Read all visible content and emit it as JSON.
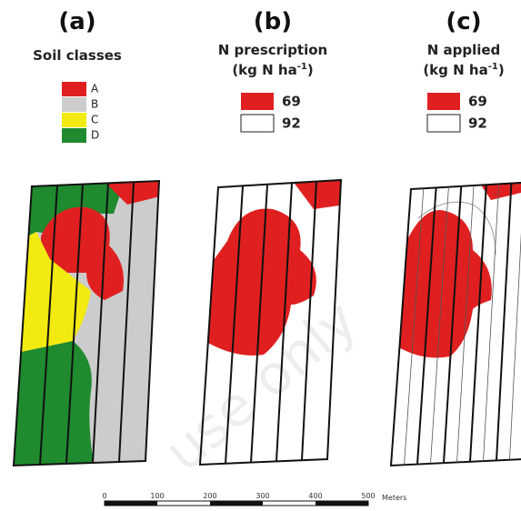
{
  "panels": [
    {
      "label": "(a)",
      "title": "Soil classes",
      "legend": [
        "A",
        "B",
        "C",
        "D"
      ]
    },
    {
      "label": "(b)",
      "title": "N prescription",
      "unit": {
        "prefix": "(kg N ha",
        "exponent": "-1",
        "suffix": ")"
      },
      "legend": [
        "69",
        "92"
      ]
    },
    {
      "label": "(c)",
      "title": "N applied",
      "unit": {
        "prefix": "(kg N ha",
        "exponent": "-1",
        "suffix": ")"
      },
      "legend": [
        "69",
        "92"
      ]
    }
  ],
  "scale_bar": {
    "ticks": [
      "0",
      "100",
      "200",
      "300",
      "400",
      "500"
    ],
    "unit": "Meters"
  },
  "watermark": "use only"
}
